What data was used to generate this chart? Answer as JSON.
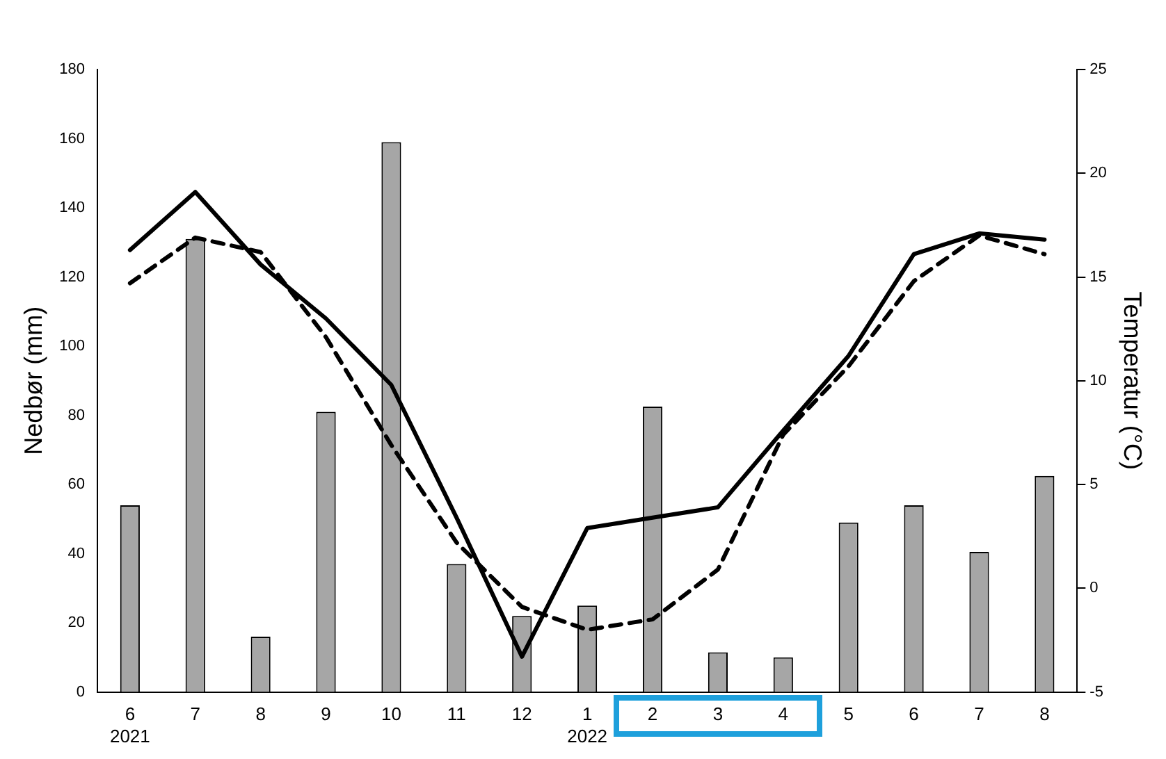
{
  "chart_data": {
    "type": "bar",
    "categories": [
      "6\n2021",
      "7",
      "8",
      "9",
      "10",
      "11",
      "12",
      "1\n2022",
      "2",
      "3",
      "4",
      "5",
      "6",
      "7",
      "8"
    ],
    "series": [
      {
        "color": "#a6a6a6",
        "values": [
          54,
          131,
          16,
          81,
          159,
          37,
          22,
          25,
          82.5,
          11.5,
          10,
          49,
          54,
          40.5,
          62.5
        ]
      },
      {
        "type": "line",
        "color": "#000000",
        "line_style": "solid",
        "axis": "y2",
        "values": [
          16.3,
          19.1,
          15.6,
          13.0,
          9.8,
          3.4,
          -3.3,
          2.9,
          3.4,
          3.9,
          7.6,
          11.2,
          16.1,
          17.1,
          16.8
        ]
      },
      {
        "type": "line",
        "color": "#000000",
        "line_style": "dashed",
        "axis": "y2",
        "values": [
          14.7,
          16.9,
          16.2,
          12.1,
          6.9,
          2.2,
          -0.9,
          -2.0,
          -1.5,
          0.9,
          7.4,
          10.7,
          14.8,
          17.0,
          16.1
        ]
      }
    ],
    "ylabel": "Nedbør (mm)",
    "y2label": "Temperatur (°C)",
    "ylim": [
      0,
      180
    ],
    "yticks": [
      0,
      20,
      40,
      60,
      80,
      100,
      120,
      140,
      160,
      180
    ],
    "y2lim": [
      -5,
      25
    ],
    "y2ticks": [
      -5,
      0,
      5,
      10,
      15,
      20,
      25
    ],
    "grid": false,
    "legend": false,
    "marker": "none"
  }
}
